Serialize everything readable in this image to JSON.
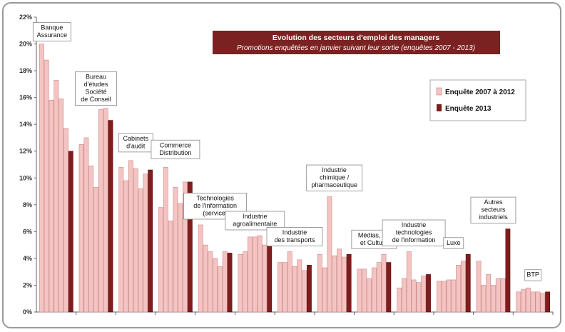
{
  "chart_data": {
    "type": "bar",
    "title": "Evolution des secteurs d'emploi des managers",
    "subtitle": "Promotions enquêtées en janvier suivant leur sortie (enquêtes 2007 - 2013)",
    "xlabel": "",
    "ylabel": "",
    "ylim": [
      0,
      22
    ],
    "ytick_step": 2,
    "ytick_suffix": "%",
    "grid": false,
    "legend_placement": "right",
    "colors": {
      "Enquête 2007 à 2012": "#f4c4c2",
      "Enquête 2013": "#7f1d1d",
      "title_bg": "#7a2222",
      "title_text": "#ffffff"
    },
    "series": [
      {
        "name": "Enquête 2007 à 2012",
        "per_group": 6
      },
      {
        "name": "Enquête 2013",
        "per_group": 1
      }
    ],
    "groups": [
      {
        "label": "Banque\nAssurance",
        "values_2007_2012": [
          20.0,
          18.8,
          15.8,
          17.3,
          15.9,
          13.7
        ],
        "value_2013": 12.0
      },
      {
        "label": "Bureau\nd'études\nSociété\nde Conseil",
        "values_2007_2012": [
          12.5,
          13.0,
          10.9,
          9.3,
          15.1,
          15.2
        ],
        "value_2013": 14.3
      },
      {
        "label": "Cabinets\nd'audit",
        "values_2007_2012": [
          10.8,
          9.8,
          11.3,
          10.7,
          9.2,
          10.3
        ],
        "value_2013": 10.6
      },
      {
        "label": "Commerce\nDistribution",
        "values_2007_2012": [
          7.8,
          10.8,
          6.8,
          9.3,
          8.1,
          9.7
        ],
        "value_2013": 9.7
      },
      {
        "label": "Technologies\nde l'information\n(service)",
        "values_2007_2012": [
          6.5,
          5.0,
          4.5,
          4.0,
          3.4,
          4.5
        ],
        "value_2013": 4.4
      },
      {
        "label": "Industrie\nagroalimentaire",
        "values_2007_2012": [
          4.3,
          4.5,
          5.6,
          5.6,
          5.7,
          5.0
        ],
        "value_2013": 5.5
      },
      {
        "label": "Industrie\ndes transports",
        "values_2007_2012": [
          3.7,
          3.7,
          4.5,
          3.4,
          3.9,
          3.1
        ],
        "value_2013": 3.5
      },
      {
        "label": "Industrie\nchimique /\npharmaceutique",
        "values_2007_2012": [
          4.3,
          3.3,
          8.6,
          4.2,
          4.7,
          4.1
        ],
        "value_2013": 4.3
      },
      {
        "label": "Médias, Art\net Culture",
        "values_2007_2012": [
          3.2,
          3.2,
          2.5,
          3.3,
          3.7,
          4.3
        ],
        "value_2013": 3.7
      },
      {
        "label": "Industrie\ntechnologies\nde l'information",
        "values_2007_2012": [
          1.8,
          2.5,
          4.5,
          2.4,
          2.2,
          2.7
        ],
        "value_2013": 2.8
      },
      {
        "label": "Luxe",
        "values_2007_2012": [
          2.3,
          2.3,
          2.4,
          2.4,
          3.5,
          3.8
        ],
        "value_2013": 4.3
      },
      {
        "label": "Autres\nsecteurs\nindustriels",
        "values_2007_2012": [
          3.8,
          2.0,
          2.8,
          2.0,
          2.5,
          2.5
        ],
        "value_2013": 6.2
      },
      {
        "label": "BTP",
        "values_2007_2012": [
          1.5,
          1.7,
          1.8,
          1.5,
          1.5,
          1.4
        ],
        "value_2013": 1.5
      }
    ]
  }
}
